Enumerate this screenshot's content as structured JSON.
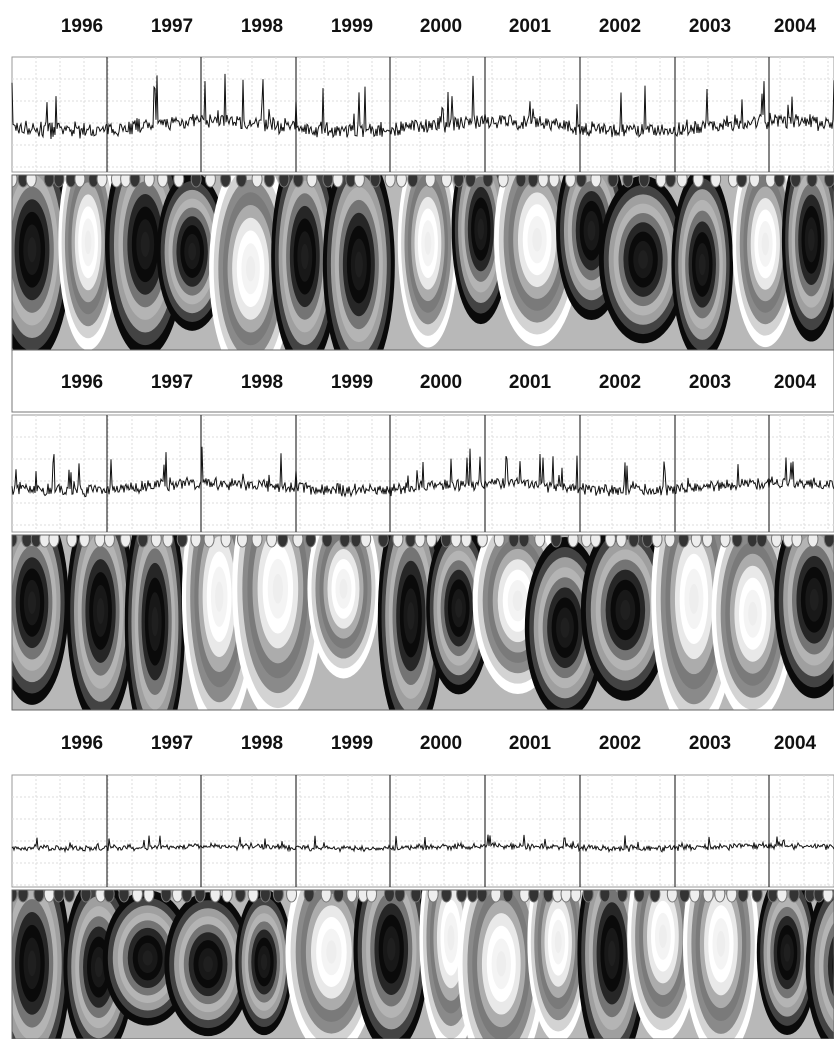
{
  "panels": [
    {
      "years": [
        "1996",
        "1997",
        "1998",
        "1999",
        "2000",
        "2001",
        "2002",
        "2003",
        "2004"
      ]
    },
    {
      "years": [
        "1996",
        "1997",
        "1998",
        "1999",
        "2000",
        "2001",
        "2002",
        "2003",
        "2004"
      ]
    },
    {
      "years": [
        "1996",
        "1997",
        "1998",
        "1999",
        "2000",
        "2001",
        "2002",
        "2003",
        "2004"
      ]
    }
  ]
}
